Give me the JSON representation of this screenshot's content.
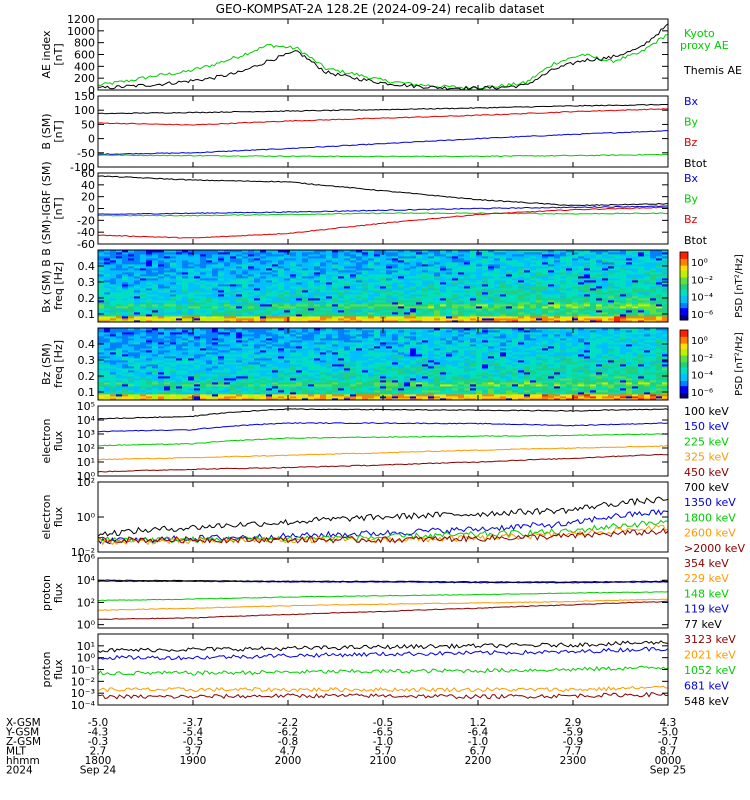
{
  "title": "GEO-KOMPSAT-2A 128.2E (2024-09-24) recalib dataset",
  "colors": {
    "black": "#000000",
    "green": "#00cc00",
    "red": "#dd0000",
    "blue": "#0000dd",
    "orange": "#ff9900",
    "darkred": "#880000",
    "cyan": "#00aaaa"
  },
  "chart_data": [
    {
      "type": "line",
      "id": "ae",
      "ylabel": "AE index\n[nT]",
      "ylim": [
        0,
        1200
      ],
      "yticks": [
        "0",
        "200",
        "400",
        "600",
        "800",
        "1000",
        "1200"
      ],
      "yticks_values": [
        0,
        200,
        400,
        600,
        800,
        1000,
        1200
      ],
      "x": [
        0,
        0.3,
        0.6,
        0.9,
        1.2,
        1.5,
        1.8,
        2.1,
        2.4,
        2.7,
        3.0,
        3.3,
        3.6,
        3.9,
        4.2,
        4.5,
        4.8,
        5.1,
        5.4,
        5.7,
        6.0
      ],
      "series": [
        {
          "name": "Kyoto proxy AE",
          "color": "green",
          "values": [
            80,
            150,
            240,
            300,
            420,
            580,
            760,
            700,
            360,
            270,
            160,
            100,
            60,
            40,
            60,
            120,
            450,
            600,
            480,
            620,
            950
          ]
        },
        {
          "name": "Themis AE",
          "color": "black",
          "values": [
            30,
            60,
            90,
            140,
            200,
            300,
            500,
            650,
            300,
            200,
            120,
            70,
            40,
            30,
            40,
            80,
            350,
            500,
            550,
            700,
            1100
          ]
        }
      ]
    },
    {
      "type": "line",
      "id": "bsm",
      "ylabel": "B (SM)\n[nT]",
      "ylim": [
        -100,
        150
      ],
      "yticks": [
        "-100",
        "-50",
        "0",
        "50",
        "100",
        "150"
      ],
      "yticks_values": [
        -100,
        -50,
        0,
        50,
        100,
        150
      ],
      "x": [
        0,
        1,
        2,
        3,
        4,
        5,
        6
      ],
      "series": [
        {
          "name": "Bx",
          "color": "blue",
          "values": [
            -55,
            -50,
            -35,
            -18,
            0,
            15,
            28
          ]
        },
        {
          "name": "By",
          "color": "green",
          "values": [
            -58,
            -60,
            -62,
            -63,
            -62,
            -60,
            -56
          ]
        },
        {
          "name": "Bz",
          "color": "red",
          "values": [
            55,
            48,
            62,
            72,
            82,
            95,
            105
          ]
        },
        {
          "name": "Btot",
          "color": "black",
          "values": [
            88,
            92,
            97,
            102,
            108,
            115,
            120
          ]
        }
      ]
    },
    {
      "type": "line",
      "id": "bigrf",
      "ylabel": "B (SM)-IGRF (SM)\n[nT]",
      "ylim": [
        -60,
        60
      ],
      "yticks": [
        "-60",
        "-40",
        "-20",
        "0",
        "20",
        "40",
        "60"
      ],
      "yticks_values": [
        -60,
        -40,
        -20,
        0,
        20,
        40,
        60
      ],
      "x": [
        0,
        1,
        2,
        3,
        4,
        5,
        6
      ],
      "series": [
        {
          "name": "Bx",
          "color": "blue",
          "values": [
            -10,
            -8,
            -6,
            -3,
            0,
            2,
            4
          ]
        },
        {
          "name": "By",
          "color": "green",
          "values": [
            -12,
            -12,
            -10,
            -8,
            -8,
            -9,
            -8
          ]
        },
        {
          "name": "Bz",
          "color": "red",
          "values": [
            -45,
            -50,
            -42,
            -25,
            -10,
            -2,
            2
          ]
        },
        {
          "name": "Btot",
          "color": "black",
          "values": [
            55,
            48,
            45,
            30,
            15,
            5,
            8
          ]
        }
      ]
    },
    {
      "type": "heatmap",
      "id": "bx_spec",
      "ylabel": "Bx (SM) B\nfreq [Hz]",
      "ylim": [
        0.05,
        0.5
      ],
      "yticks": [
        "0.1",
        "0.2",
        "0.3",
        "0.4"
      ],
      "yticks_values": [
        0.1,
        0.2,
        0.3,
        0.4
      ],
      "colorbar_label": "PSD [nT²/Hz]",
      "colorbar_ticks": [
        "10⁰",
        "10⁻²",
        "10⁻⁴",
        "10⁻⁶"
      ]
    },
    {
      "type": "heatmap",
      "id": "bz_spec",
      "ylabel": "Bz (SM)\nfreq [Hz]",
      "ylim": [
        0.05,
        0.5
      ],
      "yticks": [
        "0.1",
        "0.2",
        "0.3",
        "0.4"
      ],
      "yticks_values": [
        0.1,
        0.2,
        0.3,
        0.4
      ],
      "colorbar_label": "PSD [nT²/Hz]",
      "colorbar_ticks": [
        "10⁰",
        "10⁻²",
        "10⁻⁴",
        "10⁻⁶"
      ]
    },
    {
      "type": "line",
      "id": "elec_low",
      "yscale": "log",
      "ylabel": "electron\nflux",
      "ylim": [
        1,
        100000
      ],
      "yticks": [
        "10⁰",
        "10¹",
        "10²",
        "10³",
        "10⁴",
        "10⁵"
      ],
      "yticks_values": [
        1,
        10,
        100,
        1000,
        10000,
        100000
      ],
      "x": [
        0,
        1,
        2,
        3,
        4,
        5,
        6
      ],
      "series": [
        {
          "name": "100 keV",
          "color": "black",
          "values": [
            12000,
            18000,
            60000,
            55000,
            50000,
            45000,
            60000
          ]
        },
        {
          "name": "150 keV",
          "color": "blue",
          "values": [
            1500,
            2000,
            6000,
            6000,
            5500,
            4000,
            6000
          ]
        },
        {
          "name": "225 keV",
          "color": "green",
          "values": [
            150,
            200,
            500,
            600,
            700,
            800,
            1000
          ]
        },
        {
          "name": "325 keV",
          "color": "orange",
          "values": [
            15,
            20,
            30,
            45,
            70,
            100,
            140
          ]
        },
        {
          "name": "450 keV",
          "color": "darkred",
          "values": [
            2,
            3,
            4,
            6,
            10,
            18,
            35
          ]
        }
      ]
    },
    {
      "type": "line",
      "id": "elec_high",
      "yscale": "log",
      "ylabel": "electron\nflux",
      "ylim": [
        0.01,
        100
      ],
      "yticks": [
        "10⁻²",
        "10⁰",
        "10²"
      ],
      "yticks_values": [
        0.01,
        1,
        100
      ],
      "x": [
        0,
        1,
        2,
        3,
        4,
        5,
        6
      ],
      "series": [
        {
          "name": "700 keV",
          "color": "black",
          "values": [
            0.1,
            0.25,
            0.5,
            1,
            1.5,
            2.5,
            10
          ]
        },
        {
          "name": "1350 keV",
          "color": "blue",
          "values": [
            0.04,
            0.06,
            0.08,
            0.12,
            0.2,
            0.4,
            2
          ]
        },
        {
          "name": "1800 keV",
          "color": "green",
          "values": [
            0.05,
            0.05,
            0.06,
            0.07,
            0.1,
            0.15,
            0.5
          ]
        },
        {
          "name": "2600 keV",
          "color": "orange",
          "values": [
            0.04,
            0.04,
            0.05,
            0.05,
            0.06,
            0.1,
            0.25
          ]
        },
        {
          "name": ">2000 keV",
          "color": "darkred",
          "values": [
            0.05,
            0.05,
            0.05,
            0.05,
            0.06,
            0.08,
            0.15
          ]
        }
      ]
    },
    {
      "type": "line",
      "id": "prot_low",
      "yscale": "log",
      "ylabel": "proton\nflux",
      "ylim": [
        0.5,
        1000000
      ],
      "yticks": [
        "10⁰",
        "10²",
        "10⁴",
        "10⁶"
      ],
      "yticks_values": [
        1,
        100,
        10000,
        1000000
      ],
      "x": [
        0,
        1,
        2,
        3,
        4,
        5,
        6
      ],
      "series": [
        {
          "name": "354 keV",
          "color": "darkred",
          "values": [
            3,
            4,
            8,
            15,
            30,
            60,
            120
          ]
        },
        {
          "name": "229 keV",
          "color": "orange",
          "values": [
            20,
            30,
            50,
            70,
            90,
            120,
            200
          ]
        },
        {
          "name": "148 keV",
          "color": "green",
          "values": [
            150,
            200,
            300,
            400,
            500,
            700,
            900
          ]
        },
        {
          "name": "119 keV",
          "color": "blue",
          "values": [
            8000,
            8000,
            7000,
            7000,
            6000,
            6000,
            7000
          ]
        },
        {
          "name": "77 keV",
          "color": "black",
          "values": [
            10000,
            9000,
            8000,
            8000,
            7000,
            7000,
            8000
          ]
        }
      ]
    },
    {
      "type": "line",
      "id": "prot_high",
      "yscale": "log",
      "ylabel": "proton\nflux",
      "ylim": [
        0.0001,
        100
      ],
      "yticks": [
        "10⁻⁴",
        "10⁻³",
        "10⁻²",
        "10⁻¹",
        "10⁰",
        "10¹"
      ],
      "yticks_values": [
        0.0001,
        0.001,
        0.01,
        0.1,
        1,
        10
      ],
      "x": [
        0,
        1,
        2,
        3,
        4,
        5,
        6
      ],
      "series": [
        {
          "name": "3123 keV",
          "color": "darkred",
          "values": [
            0.0005,
            0.0005,
            0.0006,
            0.0006,
            0.0005,
            0.0006,
            0.0008
          ]
        },
        {
          "name": "2021 keV",
          "color": "orange",
          "values": [
            0.002,
            0.002,
            0.002,
            0.002,
            0.002,
            0.002,
            0.003
          ]
        },
        {
          "name": "1052 keV",
          "color": "green",
          "values": [
            0.05,
            0.05,
            0.06,
            0.07,
            0.08,
            0.1,
            0.15
          ]
        },
        {
          "name": "681 keV",
          "color": "blue",
          "values": [
            1,
            1,
            1.5,
            2,
            2.5,
            3,
            6
          ]
        },
        {
          "name": "548 keV",
          "color": "black",
          "values": [
            4,
            5,
            6,
            8,
            10,
            12,
            20
          ]
        }
      ]
    }
  ],
  "xaxis": {
    "x": [
      0,
      1,
      2,
      3,
      4,
      5,
      6
    ],
    "rows": [
      {
        "label": "X-GSM",
        "values": [
          "-5.0",
          "-3.7",
          "-2.2",
          "-0.5",
          "1.2",
          "2.9",
          "4.3"
        ]
      },
      {
        "label": "Y-GSM",
        "values": [
          "-4.3",
          "-5.4",
          "-6.2",
          "-6.5",
          "-6.4",
          "-5.9",
          "-5.0"
        ]
      },
      {
        "label": "Z-GSM",
        "values": [
          "-0.3",
          "-0.5",
          "-0.8",
          "-1.0",
          "-1.0",
          "-0.9",
          "-0.7"
        ]
      },
      {
        "label": "MLT",
        "values": [
          "2.7",
          "3.7",
          "4.7",
          "5.7",
          "6.7",
          "7.7",
          "8.7"
        ]
      },
      {
        "label": "hhmm",
        "values": [
          "1800",
          "1900",
          "2000",
          "2100",
          "2200",
          "2300",
          "0000"
        ]
      },
      {
        "label": "2024",
        "values": [
          "Sep 24",
          "",
          "",
          "",
          "",
          "",
          "Sep 25"
        ]
      }
    ]
  }
}
